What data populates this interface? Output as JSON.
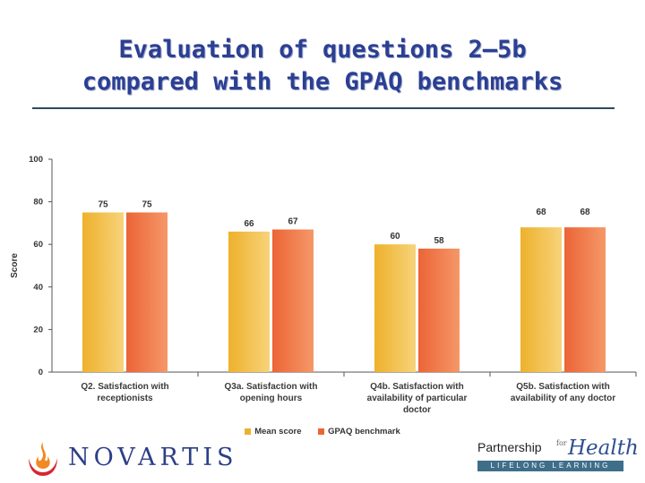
{
  "title_line1": "Evaluation of questions 2–5b",
  "title_line2": "compared with the GPAQ benchmarks",
  "chart_data": {
    "type": "bar",
    "categories": [
      [
        "Q2. Satisfaction with",
        "receptionists"
      ],
      [
        "Q3a. Satisfaction with",
        "opening hours"
      ],
      [
        "Q4b. Satisfaction with",
        "availability of particular",
        "doctor"
      ],
      [
        "Q5b. Satisfaction with",
        "availability of any doctor"
      ]
    ],
    "series": [
      {
        "name": "Mean score",
        "values": [
          75,
          66,
          60,
          68
        ],
        "labels": [
          "75",
          "66",
          "60",
          "68"
        ],
        "color_light": "#f7d37a",
        "color_dark": "#eeb12c"
      },
      {
        "name": "GPAQ benchmark",
        "values": [
          75,
          67,
          58,
          68
        ],
        "labels": [
          "75",
          "67",
          "58",
          "68"
        ],
        "color_light": "#f59868",
        "color_dark": "#ec6436"
      }
    ],
    "ylabel": "Score",
    "ylim": [
      0,
      100
    ],
    "yticks": [
      "0",
      "20",
      "40",
      "60",
      "80",
      "100"
    ]
  },
  "logos": {
    "novartis": "NOVARTIS",
    "pfh_partnership": "Partnership",
    "pfh_for": "for",
    "pfh_health": "Health",
    "pfh_band": "LIFELONG LEARNING"
  }
}
